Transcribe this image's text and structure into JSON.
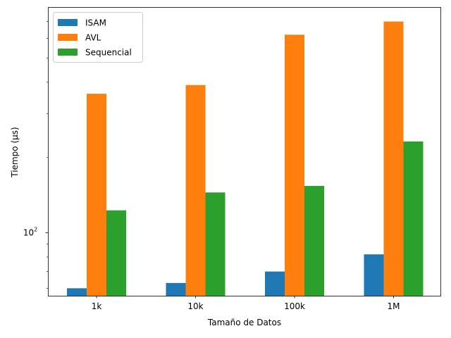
{
  "chart_data": {
    "type": "bar",
    "xlabel": "Tamaño de Datos",
    "ylabel": "Tiempo (µs)",
    "yscale": "log",
    "ylim": [
      56,
      800
    ],
    "categories": [
      "1k",
      "10k",
      "100k",
      "1M"
    ],
    "series": [
      {
        "name": "ISAM",
        "color": "#1f77b4",
        "values": [
          60,
          63,
          70,
          82
        ]
      },
      {
        "name": "AVL",
        "color": "#ff7f0e",
        "values": [
          360,
          390,
          620,
          700
        ]
      },
      {
        "name": "Sequencial",
        "color": "#2ca02c",
        "values": [
          123,
          145,
          154,
          232
        ]
      }
    ],
    "yticks_major": [
      {
        "value": 100,
        "base": "10",
        "exp": "2"
      }
    ],
    "yticks_minor": [
      60,
      70,
      80,
      90,
      200,
      300,
      400,
      500,
      600,
      700
    ],
    "legend": {
      "position": "top-left"
    },
    "grid": false
  }
}
